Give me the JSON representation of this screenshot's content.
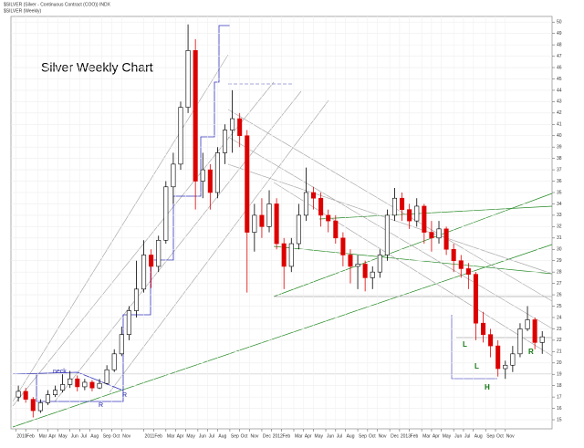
{
  "chart_data": {
    "type": "candlestick",
    "symbol_title": "$SILVER (Silver - Continuous Contract (COO)) INDX",
    "symbol_subtitle": "$SILVER (Weekly)",
    "title": "Silver Weekly Chart",
    "annotations": [
      "neck",
      "R",
      "R",
      "L",
      "L",
      "H",
      "R"
    ],
    "x": [
      1,
      4,
      7,
      10,
      13,
      16,
      19,
      22,
      25,
      28,
      31,
      34,
      37,
      40,
      43,
      46,
      49,
      52,
      55,
      58,
      61,
      64,
      67,
      70,
      73,
      76,
      79,
      82,
      85,
      88,
      91,
      94,
      97,
      100,
      103,
      106,
      109,
      112,
      115,
      118,
      121,
      124,
      127,
      130,
      133,
      136,
      139,
      142,
      145,
      148,
      151,
      154,
      157,
      160,
      163,
      166,
      169,
      172,
      175,
      178,
      181,
      184,
      187,
      190,
      193,
      196,
      199,
      202,
      205,
      208,
      211,
      214
    ],
    "open": [
      17.0,
      17.5,
      16.8,
      15.8,
      16.5,
      17.2,
      17.6,
      18.1,
      18.6,
      17.9,
      18.3,
      17.8,
      18.2,
      19.4,
      20.8,
      22.5,
      24.6,
      26.5,
      29.5,
      28.5,
      30.8,
      35.5,
      37.5,
      42.5,
      47.5,
      36.0,
      37.0,
      35.0,
      38.5,
      40.5,
      41.5,
      40.0,
      31.5,
      33.0,
      32.0,
      34.0,
      30.5,
      28.5,
      30.5,
      33.0,
      35.0,
      34.5,
      33.0,
      32.5,
      31.0,
      29.5,
      28.5,
      28.7,
      27.5,
      28.0,
      29.5,
      33.0,
      34.5,
      33.5,
      32.5,
      33.8,
      31.5,
      31.0,
      31.8,
      30.0,
      29.0,
      28.3,
      27.8,
      23.5,
      22.5,
      21.5,
      19.5,
      19.8,
      20.8,
      23.0,
      23.8,
      21.8
    ],
    "high": [
      18.0,
      17.8,
      17.0,
      16.8,
      17.6,
      18.0,
      19.0,
      19.3,
      18.9,
      18.6,
      18.5,
      18.6,
      19.8,
      21.2,
      23.2,
      25.0,
      29.0,
      30.8,
      30.0,
      31.2,
      36.0,
      38.5,
      43.0,
      49.8,
      48.5,
      38.5,
      37.5,
      39.0,
      41.0,
      44.0,
      42.0,
      40.5,
      34.0,
      34.5,
      35.2,
      34.5,
      31.0,
      31.0,
      34.0,
      37.2,
      35.5,
      35.0,
      33.5,
      33.0,
      31.5,
      30.0,
      29.5,
      29.0,
      28.5,
      30.0,
      33.5,
      35.4,
      35.0,
      34.0,
      34.5,
      34.0,
      32.5,
      32.5,
      32.0,
      30.5,
      29.5,
      28.8,
      28.0,
      24.5,
      23.0,
      22.0,
      20.2,
      21.5,
      23.5,
      25.0,
      24.0,
      22.8
    ],
    "low": [
      16.6,
      16.5,
      15.2,
      15.6,
      16.3,
      17.0,
      17.4,
      17.8,
      17.5,
      17.6,
      17.5,
      17.7,
      18.1,
      19.2,
      20.6,
      22.0,
      24.0,
      26.2,
      26.6,
      28.0,
      30.5,
      34.0,
      37.0,
      42.0,
      33.5,
      34.5,
      33.5,
      34.5,
      37.5,
      38.5,
      39.0,
      26.2,
      29.8,
      31.0,
      31.5,
      30.0,
      26.5,
      28.0,
      30.0,
      32.5,
      33.5,
      32.0,
      31.5,
      30.5,
      28.5,
      27.0,
      26.5,
      26.3,
      26.5,
      27.5,
      29.0,
      32.5,
      32.5,
      31.8,
      32.0,
      30.5,
      29.8,
      30.5,
      29.5,
      28.0,
      27.5,
      26.5,
      22.0,
      21.8,
      20.5,
      18.8,
      18.6,
      19.2,
      20.5,
      22.8,
      21.2,
      20.8
    ],
    "close": [
      17.5,
      16.8,
      15.8,
      16.5,
      17.2,
      17.6,
      18.1,
      18.6,
      17.9,
      18.3,
      17.8,
      18.2,
      19.4,
      20.8,
      22.5,
      24.6,
      26.5,
      29.5,
      28.5,
      30.8,
      35.5,
      37.5,
      42.5,
      47.5,
      36.0,
      37.0,
      35.0,
      38.5,
      40.5,
      41.5,
      40.0,
      31.5,
      33.0,
      32.0,
      34.0,
      30.5,
      28.5,
      30.5,
      33.0,
      35.0,
      34.5,
      33.0,
      32.5,
      31.0,
      29.5,
      28.5,
      28.7,
      27.5,
      28.0,
      29.5,
      33.0,
      34.5,
      33.5,
      32.5,
      33.8,
      31.5,
      31.0,
      31.8,
      30.0,
      29.0,
      28.3,
      27.8,
      23.5,
      22.5,
      21.5,
      19.5,
      19.8,
      20.8,
      23.0,
      23.8,
      21.8,
      22.3
    ],
    "up_color": "#000000",
    "down_color": "#dd0000",
    "xlim": [
      -2,
      218
    ],
    "xticks": [
      {
        "value": 0,
        "label": "2010"
      },
      {
        "value": 4,
        "label": "Feb"
      },
      {
        "value": 9,
        "label": "Mar"
      },
      {
        "value": 13,
        "label": "Apr"
      },
      {
        "value": 17,
        "label": "May"
      },
      {
        "value": 22,
        "label": "Jun"
      },
      {
        "value": 26,
        "label": "Jul"
      },
      {
        "value": 30,
        "label": "Aug"
      },
      {
        "value": 35,
        "label": "Sep"
      },
      {
        "value": 39,
        "label": "Oct"
      },
      {
        "value": 43,
        "label": "Nov"
      },
      {
        "value": 52,
        "label": "2011"
      },
      {
        "value": 56,
        "label": "Feb"
      },
      {
        "value": 61,
        "label": "Mar"
      },
      {
        "value": 65,
        "label": "Apr"
      },
      {
        "value": 69,
        "label": "May"
      },
      {
        "value": 74,
        "label": "Jun"
      },
      {
        "value": 78,
        "label": "Jul"
      },
      {
        "value": 82,
        "label": "Aug"
      },
      {
        "value": 87,
        "label": "Sep"
      },
      {
        "value": 91,
        "label": "Oct"
      },
      {
        "value": 95,
        "label": "Nov"
      },
      {
        "value": 100,
        "label": "Dec"
      },
      {
        "value": 104,
        "label": "2012"
      },
      {
        "value": 108,
        "label": "Feb"
      },
      {
        "value": 113,
        "label": "Mar"
      },
      {
        "value": 117,
        "label": "Apr"
      },
      {
        "value": 121,
        "label": "May"
      },
      {
        "value": 126,
        "label": "Jun"
      },
      {
        "value": 130,
        "label": "Jul"
      },
      {
        "value": 134,
        "label": "Aug"
      },
      {
        "value": 139,
        "label": "Sep"
      },
      {
        "value": 143,
        "label": "Oct"
      },
      {
        "value": 147,
        "label": "Nov"
      },
      {
        "value": 152,
        "label": "Dec"
      },
      {
        "value": 156,
        "label": "2013"
      },
      {
        "value": 160,
        "label": "Feb"
      },
      {
        "value": 165,
        "label": "Mar"
      },
      {
        "value": 169,
        "label": "Apr"
      },
      {
        "value": 173,
        "label": "May"
      },
      {
        "value": 178,
        "label": "Jun"
      },
      {
        "value": 182,
        "label": "Jul"
      },
      {
        "value": 186,
        "label": "Aug"
      },
      {
        "value": 191,
        "label": "Sep"
      },
      {
        "value": 195,
        "label": "Oct"
      },
      {
        "value": 199,
        "label": "Nov"
      }
    ],
    "ylim": [
      14.2,
      50.5
    ],
    "yticks": [
      15,
      16,
      17,
      18,
      19,
      20,
      21,
      22,
      23,
      24,
      25,
      26,
      27,
      28,
      29,
      30,
      31,
      32,
      33,
      34,
      35,
      36,
      37,
      38,
      39,
      40,
      41,
      42,
      43,
      44,
      45,
      46,
      47,
      48,
      49,
      50
    ],
    "grid": true
  }
}
